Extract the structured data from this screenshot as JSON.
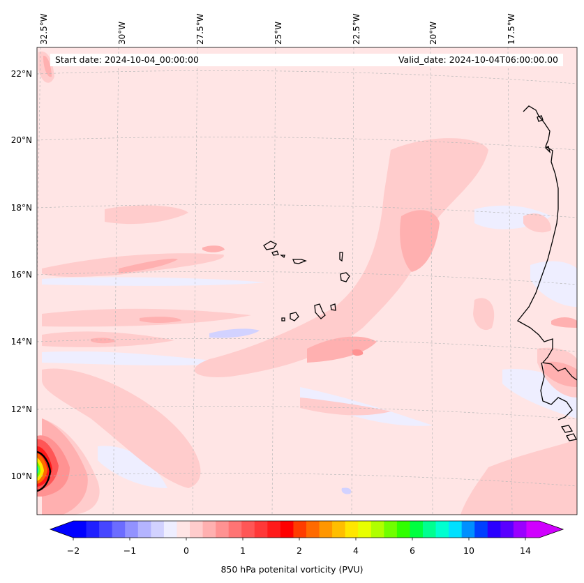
{
  "map": {
    "start_date": "Start date: 2024-10-04_00:00:00",
    "valid_date": "Valid_date: 2024-10-04T06:00:00.00",
    "lon_labels": [
      "32.5°W",
      "30°W",
      "27.5°W",
      "25°W",
      "22.5°W",
      "20°W",
      "17.5°W"
    ],
    "lat_labels": [
      "22°N",
      "20°N",
      "18°N",
      "16°N",
      "14°N",
      "12°N",
      "10°N"
    ],
    "background_color": "#ffe5e5",
    "coastline_color": "#000000"
  },
  "colorbar": {
    "label": "850 hPa potenital vorticity (PVU)",
    "tick_labels": [
      "−2",
      "−1",
      "0",
      "1",
      "2",
      "4",
      "6",
      "10",
      "14"
    ],
    "colors": [
      "#0000ff",
      "#2020ff",
      "#4646ff",
      "#6c6cff",
      "#9292ff",
      "#b4b4ff",
      "#d2d2ff",
      "#eeeeff",
      "#ffe5e5",
      "#ffcccc",
      "#ffb0b0",
      "#ff9292",
      "#ff7474",
      "#ff5656",
      "#ff3838",
      "#ff1a1a",
      "#ff0000",
      "#ff3c00",
      "#ff6a00",
      "#ff9600",
      "#ffbe00",
      "#ffe600",
      "#e8ff00",
      "#b0ff00",
      "#70ff00",
      "#30ff00",
      "#00ff40",
      "#00ff90",
      "#00ffd0",
      "#00e0ff",
      "#0090ff",
      "#0040ff",
      "#2a00ff",
      "#5a00ff",
      "#9a00ff",
      "#d000ff"
    ],
    "extend": "both"
  }
}
